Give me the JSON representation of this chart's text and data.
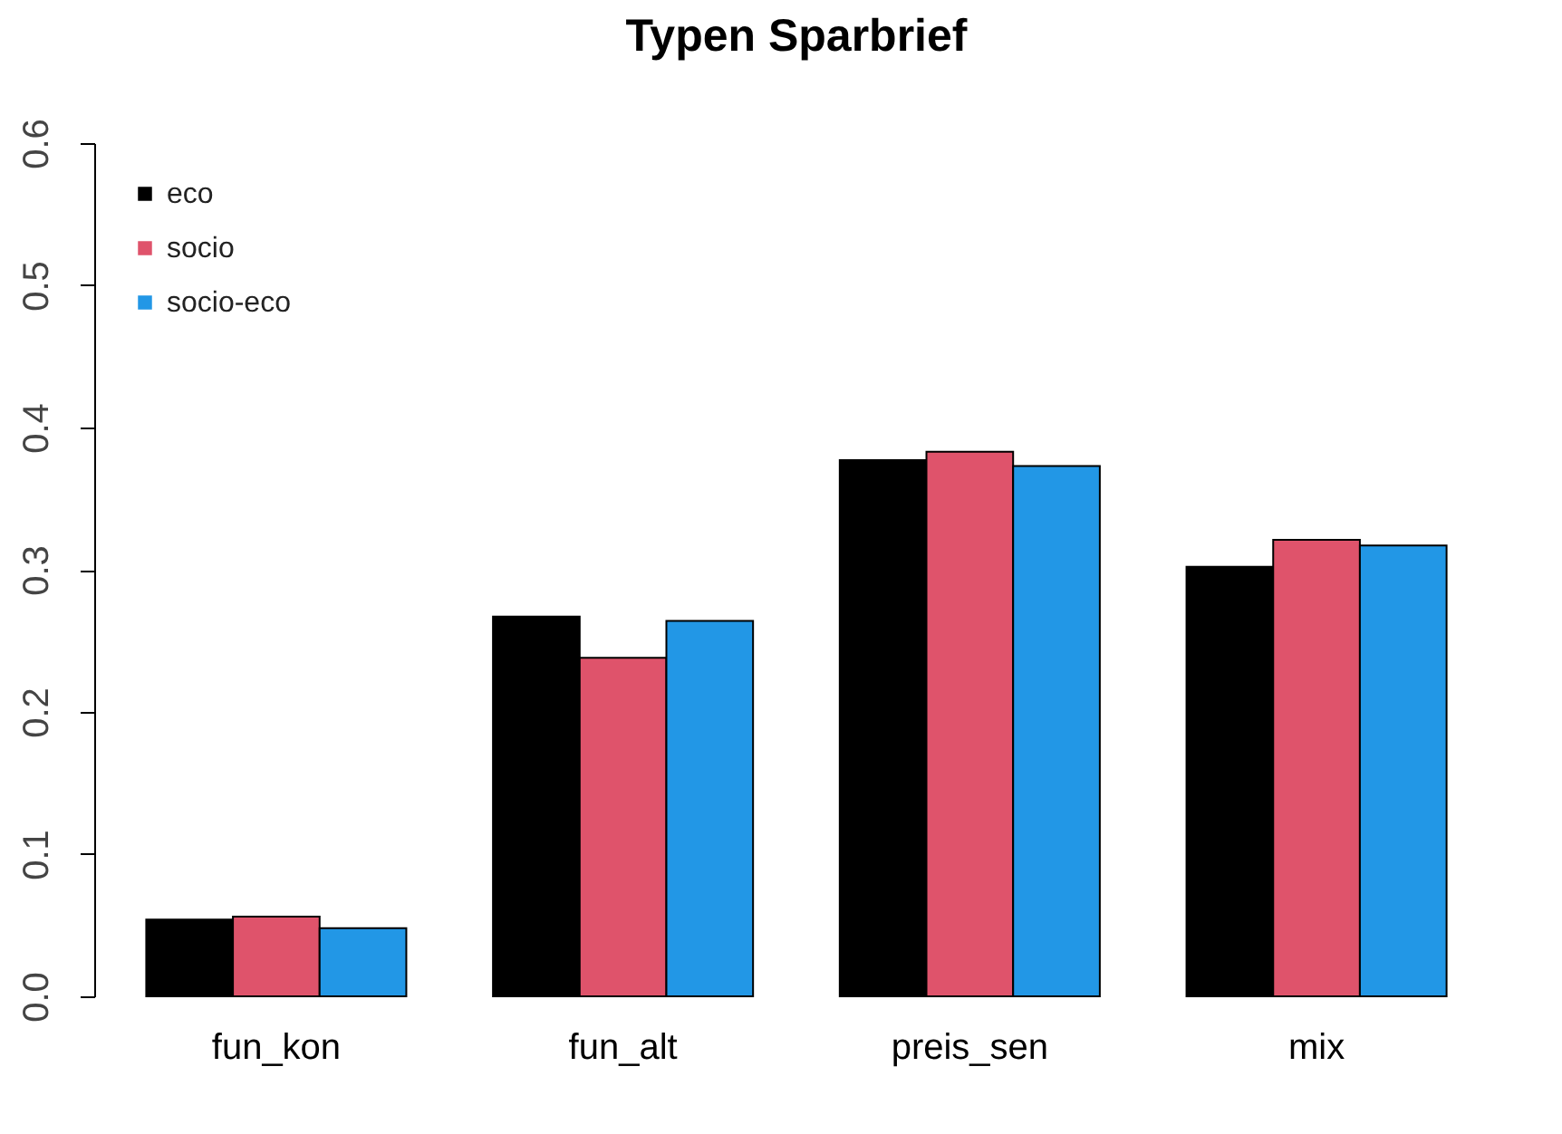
{
  "chart_data": {
    "type": "bar",
    "title": "Typen Sparbrief",
    "categories": [
      "fun_kon",
      "fun_alt",
      "preis_sen",
      "mix"
    ],
    "series": [
      {
        "name": "eco",
        "color": "#000000",
        "values": [
          0.054,
          0.267,
          0.377,
          0.302
        ]
      },
      {
        "name": "socio",
        "color": "#df536b",
        "values": [
          0.056,
          0.238,
          0.383,
          0.321
        ]
      },
      {
        "name": "socio-eco",
        "color": "#2297e6",
        "values": [
          0.048,
          0.264,
          0.373,
          0.317
        ]
      }
    ],
    "ylim": [
      0,
      0.6
    ],
    "yticks": [
      {
        "value": 0,
        "label": "0.0"
      },
      0.1,
      0.2,
      0.3,
      0.4,
      0.5,
      0.6
    ],
    "legend": "top left",
    "grid": false
  }
}
